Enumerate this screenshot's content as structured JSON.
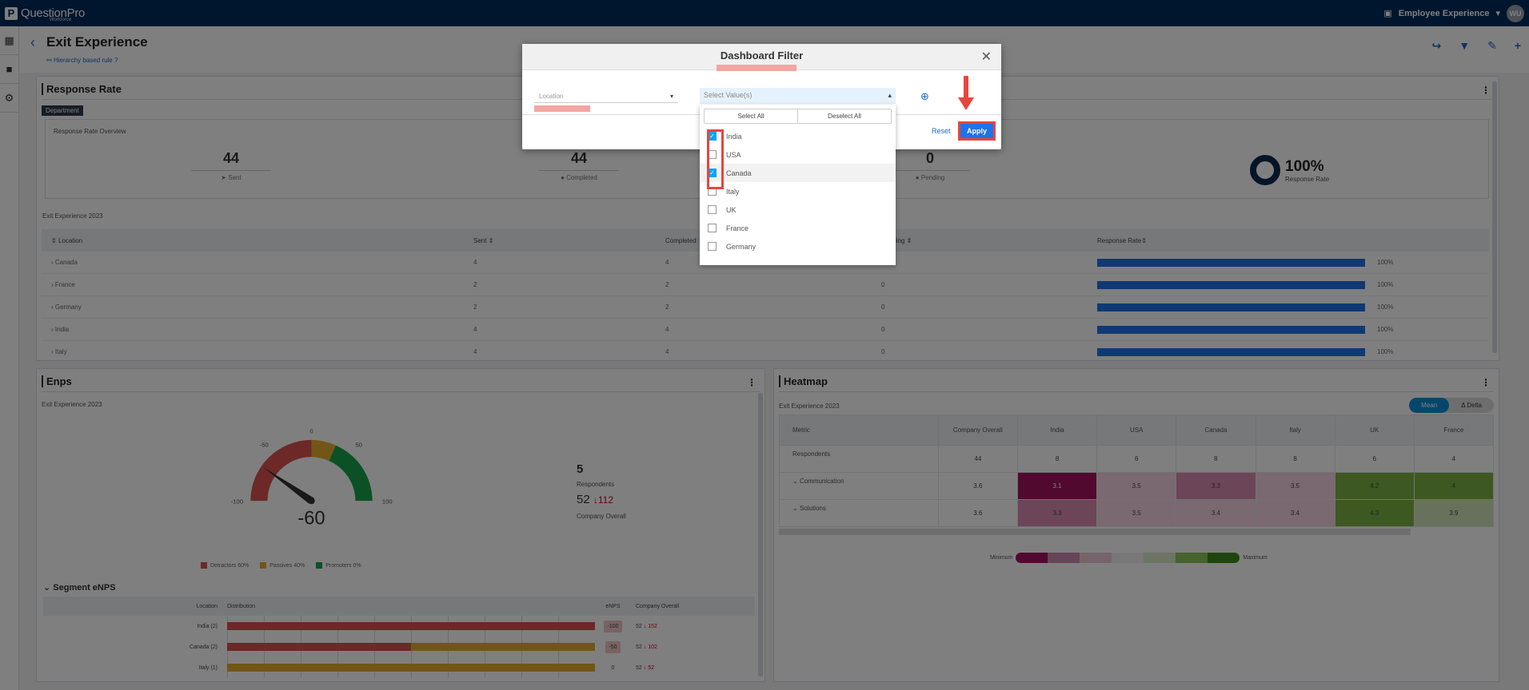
{
  "topbar": {
    "logo_letter": "P",
    "logo_text": "QuestionPro",
    "logo_sub": "Workforce",
    "product": "Employee Experience",
    "avatar": "WU"
  },
  "leftnav": {
    "icons": [
      "dashboard-icon",
      "folder-icon",
      "gear-icon"
    ]
  },
  "header": {
    "title": "Exit Experience",
    "hierarchy_link": "Hierarchy based rule"
  },
  "response_rate": {
    "title": "Response Rate",
    "tag": "Department",
    "overview_title": "Response Rate Overview",
    "stats": [
      {
        "value": "44",
        "label": "Sent"
      },
      {
        "value": "44",
        "label": "Completed"
      },
      {
        "value": "0",
        "label": "Pending"
      }
    ],
    "rate": {
      "value": "100%",
      "label": "Response Rate"
    },
    "survey": "Exit Experience 2023",
    "columns": [
      "Location",
      "Sent",
      "Completed",
      "Pending",
      "Response Rate"
    ],
    "rows": [
      {
        "location": "Canada",
        "sent": "4",
        "completed": "4",
        "pending": "0",
        "rate": "100%"
      },
      {
        "location": "France",
        "sent": "2",
        "completed": "2",
        "pending": "0",
        "rate": "100%"
      },
      {
        "location": "Germany",
        "sent": "2",
        "completed": "2",
        "pending": "0",
        "rate": "100%"
      },
      {
        "location": "India",
        "sent": "4",
        "completed": "4",
        "pending": "0",
        "rate": "100%"
      },
      {
        "location": "Italy",
        "sent": "4",
        "completed": "4",
        "pending": "0",
        "rate": "100%"
      }
    ]
  },
  "enps": {
    "title": "Enps",
    "survey": "Exit Experience 2023",
    "gauge": {
      "value": "-60",
      "label": "eNPS",
      "ticks": [
        "-100",
        "-50",
        "0",
        "50",
        "100"
      ]
    },
    "respondents": "5",
    "respondents_label": "Respondents",
    "company_value": "52",
    "company_delta": "112",
    "company_label": "Company Overall",
    "legend": [
      {
        "label": "Detractors 60%",
        "color": "#d9534f"
      },
      {
        "label": "Passives 40%",
        "color": "#e5ad2e"
      },
      {
        "label": "Promoters 0%",
        "color": "#17a34a"
      }
    ],
    "segment_title": "Segment eNPS",
    "segment_columns": [
      "Location",
      "Distribution",
      "eNPS",
      "Company Overall"
    ],
    "segments": [
      {
        "location": "India (2)",
        "det": 100,
        "pas": 0,
        "enps": "-100",
        "company": "52",
        "delta": "152"
      },
      {
        "location": "Canada (2)",
        "det": 50,
        "pas": 50,
        "enps": "-50",
        "company": "52",
        "delta": "102"
      },
      {
        "location": "Italy (1)",
        "det": 0,
        "pas": 100,
        "enps": "0",
        "company": "52",
        "delta": "52"
      }
    ]
  },
  "heatmap": {
    "title": "Heatmap",
    "survey": "Exit Experience 2023",
    "toggle": [
      "Mean",
      "Δ Delta"
    ],
    "columns": [
      "Metric",
      "Company Overall",
      "India",
      "USA",
      "Canada",
      "Italy",
      "UK",
      "France"
    ],
    "rows": [
      {
        "metric": "Respondents",
        "values": [
          "44",
          "8",
          "6",
          "8",
          "8",
          "6",
          "4"
        ],
        "colors": [
          "",
          "",
          "",
          "",
          "",
          "",
          ""
        ]
      },
      {
        "metric": "Communication",
        "values": [
          "3.6",
          "3.1",
          "3.5",
          "3.3",
          "3.5",
          "4.2",
          "4"
        ],
        "colors": [
          "",
          "#a3125e",
          "#f4d3e1",
          "#d88bb1",
          "#f4d3e1",
          "#7ab342",
          "#7ab342"
        ]
      },
      {
        "metric": "Solutions",
        "values": [
          "3.6",
          "3.3",
          "3.5",
          "3.4",
          "3.4",
          "4.3",
          "3.9"
        ],
        "colors": [
          "",
          "#d88bb1",
          "#f4d3e1",
          "#f4d3e1",
          "#f4d3e1",
          "#7ab342",
          "#cfe3b8"
        ]
      }
    ],
    "scale": {
      "min_label": "Minimum",
      "max_label": "Maximum",
      "colors": [
        "#a3125e",
        "#cf8ab0",
        "#ecc9d8",
        "#f0f0f0",
        "#d8e9c6",
        "#8dc45a",
        "#3f8a1c"
      ]
    }
  },
  "modal": {
    "title": "Dashboard Filter",
    "field_label": "Location",
    "values_placeholder": "Select Value(s)",
    "select_all": "Select All",
    "deselect_all": "Deselect All",
    "reset": "Reset",
    "apply": "Apply",
    "options": [
      {
        "label": "India",
        "checked": true
      },
      {
        "label": "USA",
        "checked": false
      },
      {
        "label": "Canada",
        "checked": true
      },
      {
        "label": "Italy",
        "checked": false
      },
      {
        "label": "UK",
        "checked": false
      },
      {
        "label": "France",
        "checked": false
      },
      {
        "label": "Germany",
        "checked": false
      }
    ]
  }
}
